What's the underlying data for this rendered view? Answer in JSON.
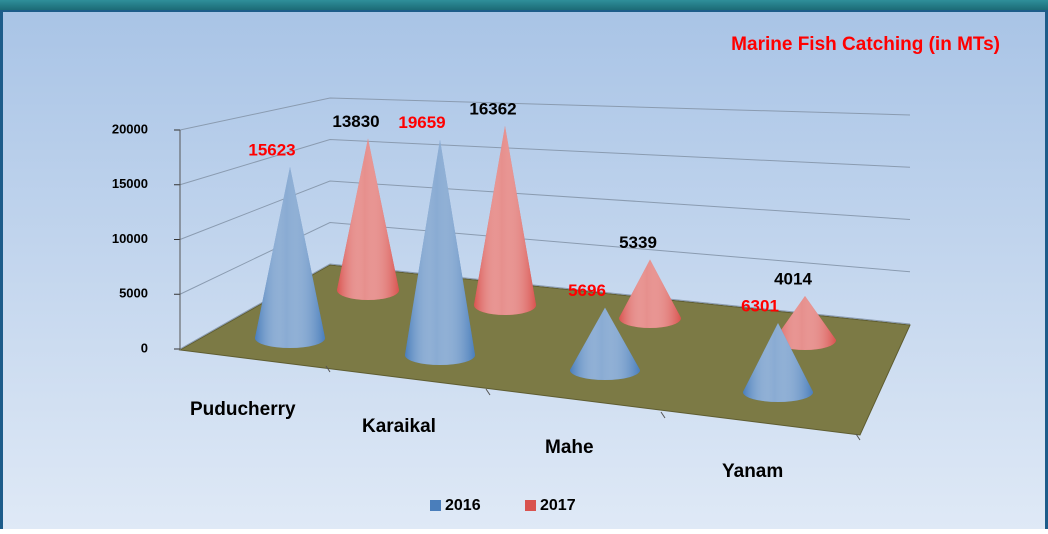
{
  "chart_data": {
    "type": "cone3d",
    "title": "Marine Fish Catching  (in MTs)",
    "categories": [
      "Puducherry",
      "Karaikal",
      "Mahe",
      "Yanam"
    ],
    "series": [
      {
        "name": "2016",
        "color": "#4a7ebb",
        "label_color": "#ff0000",
        "values": [
          15623,
          19659,
          5696,
          6301
        ]
      },
      {
        "name": "2017",
        "color": "#d9534f",
        "label_color": "#000000",
        "values": [
          13830,
          16362,
          5339,
          4014
        ]
      }
    ],
    "ylim": [
      0,
      20000
    ],
    "yticks": [
      0,
      5000,
      10000,
      15000,
      20000
    ],
    "grid": true,
    "legend": "bottom"
  }
}
